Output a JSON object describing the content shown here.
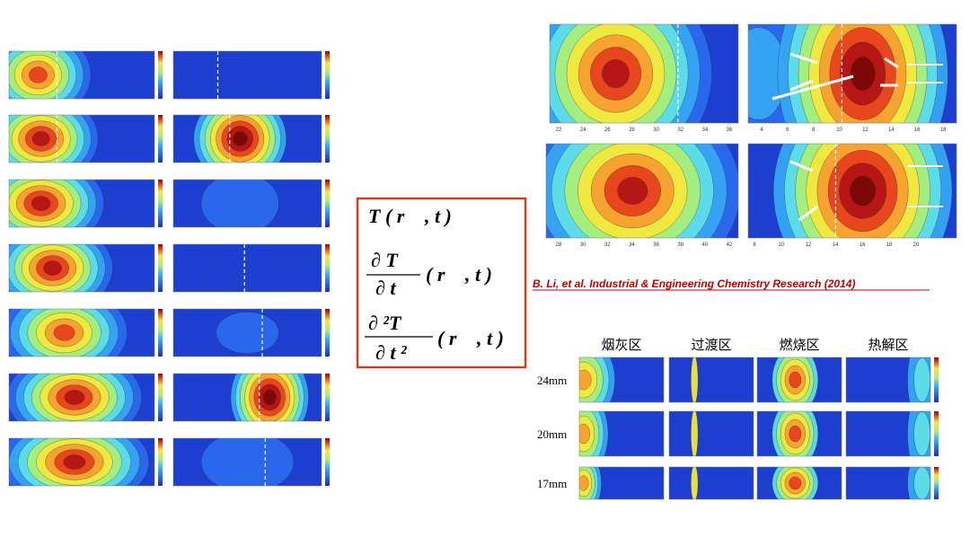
{
  "formulas": {
    "f1": "T ( r⃗ , t )",
    "f2": {
      "num": "∂ T",
      "den": "∂ t",
      "args": "( r⃗ , t )"
    },
    "f3": {
      "num": "∂ ²T",
      "den": "∂ t ²",
      "args": "( r⃗ , t )"
    }
  },
  "citation": "B. Li,  et al.  Industrial & Engineering Chemistry Research  (2014)",
  "zones": {
    "headers": [
      "烟灰区",
      "过渡区",
      "燃烧区",
      "热解区"
    ],
    "rows": [
      "24mm",
      "20mm",
      "17mm"
    ]
  },
  "top_right": {
    "ticks_a": [
      "22",
      "24",
      "26",
      "28",
      "30",
      "32",
      "34",
      "36"
    ],
    "ticks_b": [
      "4",
      "6",
      "8",
      "10",
      "12",
      "14",
      "16",
      "18"
    ],
    "ticks_c": [
      "28",
      "30",
      "32",
      "34",
      "36",
      "38",
      "40",
      "42"
    ],
    "ticks_d": [
      "8",
      "10",
      "12",
      "14",
      "16",
      "18",
      "20"
    ]
  }
}
